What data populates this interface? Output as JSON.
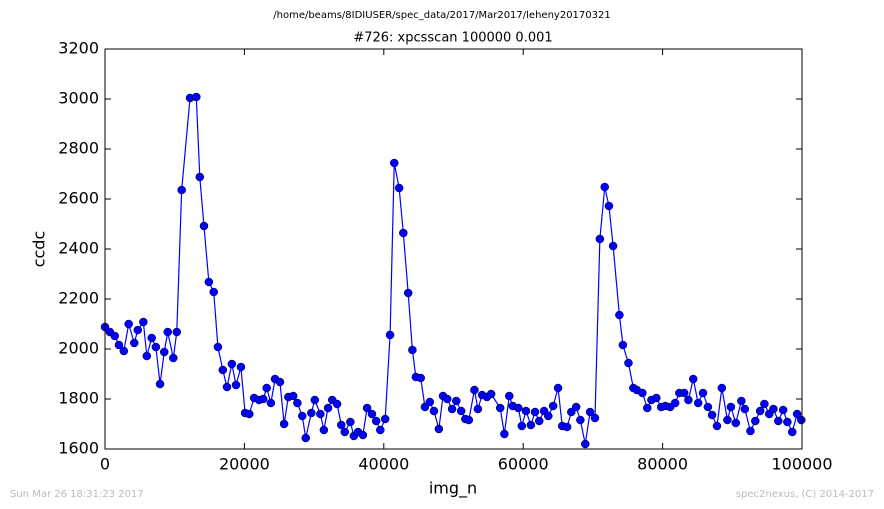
{
  "chart_data": {
    "type": "line",
    "suptitle": "/home/beams/8IDIUSER/spec_data/2017/Mar2017/leheny20170321",
    "title": "#726: xpcsscan 100000 0.001",
    "x_label": "img_n",
    "y_label": "ccdc",
    "footer_left": "Sun Mar 26 18:31:23 2017",
    "footer_right": "spec2nexus, (C) 2014-2017",
    "x": [
      0,
      700,
      1400,
      2000,
      2700,
      3400,
      4200,
      4700,
      5500,
      6000,
      6700,
      7300,
      7900,
      8500,
      9000,
      9800,
      10300,
      11000,
      12200,
      13100,
      13600,
      14200,
      14900,
      15600,
      16200,
      16900,
      17500,
      18200,
      18800,
      19500,
      20100,
      20700,
      21400,
      22100,
      22700,
      23200,
      23800,
      24400,
      25100,
      25700,
      26300,
      27000,
      27600,
      28300,
      28800,
      29600,
      30100,
      30900,
      31400,
      32000,
      32600,
      33300,
      33900,
      34400,
      35200,
      35700,
      36300,
      37000,
      37600,
      38300,
      38900,
      39500,
      40200,
      40900,
      41500,
      42200,
      42800,
      43500,
      44100,
      44600,
      45300,
      45900,
      46600,
      47200,
      47900,
      48500,
      49100,
      49800,
      50400,
      51100,
      51700,
      52200,
      53000,
      53500,
      54100,
      54800,
      55400,
      56700,
      57300,
      58000,
      58500,
      59300,
      59800,
      60400,
      61100,
      61700,
      62300,
      63000,
      63600,
      64300,
      65000,
      65600,
      66300,
      66900,
      67600,
      68200,
      68900,
      69600,
      70300,
      71000,
      71700,
      72300,
      72900,
      73800,
      74300,
      75100,
      75800,
      76300,
      77100,
      77800,
      78400,
      79100,
      79800,
      80400,
      81100,
      81800,
      82400,
      83100,
      83700,
      84400,
      85100,
      85800,
      86500,
      87100,
      87800,
      88500,
      89300,
      89800,
      90500,
      91300,
      91800,
      92600,
      93300,
      94000,
      94600,
      95300,
      95900,
      96600,
      97300,
      97900,
      98600,
      99300,
      99900
    ],
    "series": [
      {
        "name": "ccdc",
        "color": "#0000ff",
        "values": [
          2088,
          2068,
          2052,
          2016,
          1992,
          2100,
          2024,
          2076,
          2108,
          1972,
          2044,
          2008,
          1860,
          1988,
          2068,
          1964,
          2068,
          2636,
          3004,
          3008,
          2688,
          2492,
          2268,
          2228,
          2008,
          1916,
          1848,
          1940,
          1856,
          1928,
          1744,
          1740,
          1804,
          1796,
          1800,
          1844,
          1784,
          1880,
          1868,
          1700,
          1808,
          1812,
          1784,
          1732,
          1644,
          1744,
          1796,
          1740,
          1676,
          1764,
          1796,
          1780,
          1696,
          1668,
          1708,
          1652,
          1668,
          1656,
          1764,
          1740,
          1712,
          1676,
          1720,
          2056,
          2744,
          2644,
          2464,
          2224,
          1996,
          1888,
          1884,
          1768,
          1788,
          1752,
          1680,
          1812,
          1800,
          1760,
          1792,
          1752,
          1720,
          1716,
          1836,
          1760,
          1816,
          1808,
          1820,
          1764,
          1660,
          1812,
          1772,
          1764,
          1692,
          1752,
          1696,
          1748,
          1712,
          1752,
          1732,
          1772,
          1844,
          1692,
          1688,
          1748,
          1768,
          1716,
          1620,
          1748,
          1724,
          2440,
          2648,
          2572,
          2412,
          2136,
          2016,
          1944,
          1844,
          1836,
          1824,
          1764,
          1796,
          1804,
          1768,
          1772,
          1768,
          1784,
          1824,
          1824,
          1796,
          1880,
          1784,
          1824,
          1768,
          1736,
          1692,
          1844,
          1716,
          1768,
          1704,
          1792,
          1760,
          1672,
          1712,
          1752,
          1780,
          1740,
          1760,
          1712,
          1756,
          1708,
          1668,
          1740,
          1716
        ]
      }
    ],
    "xlim": [
      0,
      100000
    ],
    "xticks": [
      0,
      20000,
      40000,
      60000,
      80000,
      100000
    ],
    "ylim": [
      1600,
      3200
    ],
    "yticks": [
      1600,
      1800,
      2000,
      2200,
      2400,
      2600,
      2800,
      3000,
      3200
    ],
    "grid": false
  }
}
